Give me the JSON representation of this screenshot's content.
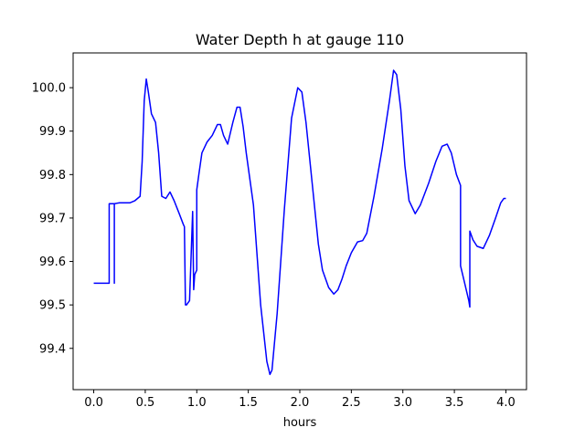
{
  "chart_data": {
    "type": "line",
    "title": "Water Depth h at gauge 110",
    "xlabel": "hours",
    "ylabel": "",
    "xlim": [
      -0.2,
      4.2
    ],
    "ylim": [
      99.305,
      100.08
    ],
    "xticks": [
      0.0,
      0.5,
      1.0,
      1.5,
      2.0,
      2.5,
      3.0,
      3.5,
      4.0
    ],
    "xtick_labels": [
      "0.0",
      "0.5",
      "1.0",
      "1.5",
      "2.0",
      "2.5",
      "3.0",
      "3.5",
      "4.0"
    ],
    "yticks": [
      99.4,
      99.5,
      99.6,
      99.7,
      99.8,
      99.9,
      100.0
    ],
    "ytick_labels": [
      "99.4",
      "99.5",
      "99.6",
      "99.7",
      "99.8",
      "99.9",
      "100.0"
    ],
    "grid": false,
    "series": [
      {
        "color": "#0000ff",
        "x": [
          0.0,
          0.15,
          0.15,
          0.2,
          0.2,
          0.2,
          0.2,
          0.25,
          0.35,
          0.4,
          0.45,
          0.47,
          0.49,
          0.51,
          0.53,
          0.56,
          0.6,
          0.63,
          0.66,
          0.7,
          0.74,
          0.78,
          0.83,
          0.87,
          0.88,
          0.89,
          0.9,
          0.93,
          0.96,
          0.97,
          0.98,
          1.0,
          1.0,
          1.02,
          1.05,
          1.1,
          1.15,
          1.2,
          1.23,
          1.26,
          1.3,
          1.35,
          1.39,
          1.42,
          1.45,
          1.48,
          1.55,
          1.62,
          1.68,
          1.71,
          1.73,
          1.78,
          1.85,
          1.92,
          1.98,
          2.02,
          2.06,
          2.12,
          2.18,
          2.22,
          2.28,
          2.33,
          2.37,
          2.41,
          2.45,
          2.5,
          2.56,
          2.61,
          2.65,
          2.72,
          2.8,
          2.87,
          2.91,
          2.94,
          2.98,
          3.02,
          3.06,
          3.12,
          3.17,
          3.25,
          3.32,
          3.38,
          3.43,
          3.47,
          3.52,
          3.56,
          3.56,
          3.6,
          3.64,
          3.65,
          3.65,
          3.68,
          3.72,
          3.78,
          3.84,
          3.9,
          3.95,
          3.98,
          4.0
        ],
        "y": [
          99.55,
          99.55,
          99.733,
          99.733,
          99.55,
          99.733,
          99.733,
          99.735,
          99.735,
          99.74,
          99.75,
          99.83,
          99.97,
          100.02,
          99.99,
          99.94,
          99.92,
          99.85,
          99.75,
          99.745,
          99.76,
          99.74,
          99.71,
          99.685,
          99.68,
          99.5,
          99.5,
          99.51,
          99.715,
          99.535,
          99.57,
          99.58,
          99.765,
          99.8,
          99.85,
          99.875,
          99.89,
          99.915,
          99.915,
          99.89,
          99.87,
          99.92,
          99.955,
          99.955,
          99.91,
          99.85,
          99.73,
          99.5,
          99.37,
          99.34,
          99.35,
          99.48,
          99.72,
          99.93,
          100.0,
          99.99,
          99.92,
          99.78,
          99.64,
          99.58,
          99.54,
          99.525,
          99.535,
          99.56,
          99.59,
          99.62,
          99.645,
          99.648,
          99.665,
          99.75,
          99.86,
          99.97,
          100.04,
          100.03,
          99.95,
          99.82,
          99.74,
          99.71,
          99.73,
          99.78,
          99.83,
          99.865,
          99.87,
          99.85,
          99.8,
          99.775,
          99.59,
          99.55,
          99.51,
          99.495,
          99.67,
          99.65,
          99.635,
          99.63,
          99.66,
          99.7,
          99.735,
          99.745,
          99.745
        ]
      }
    ]
  }
}
